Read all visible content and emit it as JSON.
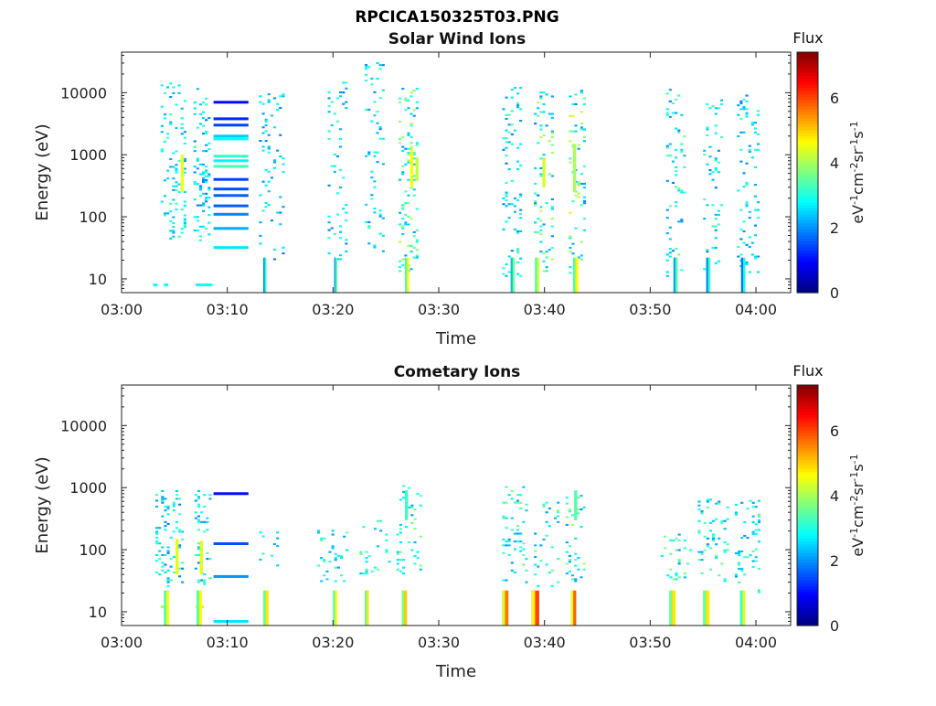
{
  "figure_title": "RPCICA150325T03.PNG",
  "colormap": [
    "#00007f",
    "#0000ff",
    "#007fff",
    "#00ffff",
    "#7fff7f",
    "#ffff00",
    "#ff7f00",
    "#ff0000",
    "#7f0000"
  ],
  "chart_data": [
    {
      "type": "heatmap",
      "title": "Solar Wind Ions",
      "xlabel": "Time",
      "ylabel": "Energy (eV)",
      "y_scale": "log",
      "xlim": [
        0,
        67
      ],
      "ylim": [
        6,
        45000
      ],
      "x_ticks": [
        "03:00",
        "03:10",
        "03:20",
        "03:30",
        "03:40",
        "03:50",
        "04:00"
      ],
      "x_tick_values": [
        0,
        10,
        20,
        30,
        40,
        50,
        60
      ],
      "y_ticks": [
        "10",
        "100",
        "1000",
        "10000"
      ],
      "y_tick_values": [
        10,
        100,
        1000,
        10000
      ],
      "colorbar": {
        "title": "Flux",
        "label": "eV^-1 cm^-2 sr^-1 s^-1",
        "range": [
          0,
          7.4
        ],
        "ticks": [
          0,
          2,
          4,
          6
        ]
      },
      "clusters": [
        {
          "t": [
            3.7,
            6.0
          ],
          "emin": 40,
          "emax": 15000,
          "flux": [
            2.0,
            3.3
          ],
          "density": 0.12
        },
        {
          "t": [
            6.8,
            8.4
          ],
          "emin": 35,
          "emax": 13000,
          "flux": [
            1.8,
            3.2
          ],
          "density": 0.16
        },
        {
          "t": [
            13.0,
            15.5
          ],
          "emin": 20,
          "emax": 10000,
          "flux": [
            1.8,
            3.0
          ],
          "density": 0.08
        },
        {
          "t": [
            19.5,
            21.5
          ],
          "emin": 20,
          "emax": 15000,
          "flux": [
            1.8,
            3.4
          ],
          "density": 0.09
        },
        {
          "t": [
            23.0,
            24.8
          ],
          "emin": 25,
          "emax": 32000,
          "flux": [
            1.8,
            3.3
          ],
          "density": 0.09
        },
        {
          "t": [
            26.2,
            28.2
          ],
          "emin": 12,
          "emax": 13000,
          "flux": [
            2.0,
            4.2
          ],
          "density": 0.13
        },
        {
          "t": [
            36.0,
            38.0
          ],
          "emin": 10,
          "emax": 12000,
          "flux": [
            1.8,
            3.4
          ],
          "density": 0.09
        },
        {
          "t": [
            39.0,
            40.8
          ],
          "emin": 12,
          "emax": 11000,
          "flux": [
            1.8,
            4.2
          ],
          "density": 0.1
        },
        {
          "t": [
            42.3,
            44.0
          ],
          "emin": 12,
          "emax": 11000,
          "flux": [
            1.8,
            4.4
          ],
          "density": 0.11
        },
        {
          "t": [
            51.5,
            53.5
          ],
          "emin": 10,
          "emax": 12000,
          "flux": [
            1.8,
            3.6
          ],
          "density": 0.09
        },
        {
          "t": [
            55.0,
            57.0
          ],
          "emin": 12,
          "emax": 10000,
          "flux": [
            1.8,
            3.4
          ],
          "density": 0.08
        },
        {
          "t": [
            58.2,
            60.3
          ],
          "emin": 10,
          "emax": 10000,
          "flux": [
            1.8,
            3.2
          ],
          "density": 0.09
        }
      ],
      "bands": [
        {
          "t": [
            8.7,
            12.0
          ],
          "energy": 7000,
          "flux": 1.0
        },
        {
          "t": [
            8.7,
            12.0
          ],
          "energy": 3800,
          "flux": 1.2
        },
        {
          "t": [
            8.7,
            12.0
          ],
          "energy": 3000,
          "flux": 1.4
        },
        {
          "t": [
            8.7,
            12.0
          ],
          "energy": 2000,
          "flux": 2.4
        },
        {
          "t": [
            8.7,
            12.0
          ],
          "energy": 1800,
          "flux": 2.8
        },
        {
          "t": [
            8.7,
            12.0
          ],
          "energy": 950,
          "flux": 3.2
        },
        {
          "t": [
            8.7,
            12.0
          ],
          "energy": 800,
          "flux": 2.7
        },
        {
          "t": [
            8.7,
            12.0
          ],
          "energy": 650,
          "flux": 3.3
        },
        {
          "t": [
            8.7,
            12.0
          ],
          "energy": 400,
          "flux": 1.4
        },
        {
          "t": [
            8.7,
            12.0
          ],
          "energy": 280,
          "flux": 1.5
        },
        {
          "t": [
            8.7,
            12.0
          ],
          "energy": 220,
          "flux": 1.6
        },
        {
          "t": [
            8.7,
            12.0
          ],
          "energy": 150,
          "flux": 1.6
        },
        {
          "t": [
            8.7,
            12.0
          ],
          "energy": 110,
          "flux": 1.9
        },
        {
          "t": [
            8.7,
            12.0
          ],
          "energy": 65,
          "flux": 2.2
        },
        {
          "t": [
            8.7,
            12.0
          ],
          "energy": 32,
          "flux": 2.6
        },
        {
          "t": [
            3.0,
            3.4
          ],
          "energy": 8,
          "flux": 2.8
        },
        {
          "t": [
            4.0,
            4.4
          ],
          "energy": 8,
          "flux": 2.8
        },
        {
          "t": [
            7.0,
            8.6
          ],
          "energy": 8,
          "flux": 2.9
        }
      ],
      "hot_streaks": [
        {
          "t": 5.6,
          "emin": 250,
          "emax": 1000,
          "flux": 4.5
        },
        {
          "t": 27.3,
          "emin": 300,
          "emax": 1200,
          "flux": 4.6
        },
        {
          "t": 27.8,
          "emin": 400,
          "emax": 900,
          "flux": 4.2
        },
        {
          "t": 39.8,
          "emin": 300,
          "emax": 900,
          "flux": 4.3
        },
        {
          "t": 42.7,
          "emin": 250,
          "emax": 1500,
          "flux": 4.0
        }
      ],
      "low_energy": [
        {
          "t": [
            13.4,
            13.7
          ],
          "flux": 3.2
        },
        {
          "t": [
            20.1,
            20.4
          ],
          "flux": 3.4
        },
        {
          "t": [
            26.8,
            27.2
          ],
          "flux": 4.6
        },
        {
          "t": [
            36.8,
            37.2
          ],
          "flux": 3.6
        },
        {
          "t": [
            39.1,
            39.5
          ],
          "flux": 4.4
        },
        {
          "t": [
            42.7,
            43.2
          ],
          "flux": 4.6
        },
        {
          "t": [
            52.2,
            52.6
          ],
          "flux": 3.4
        },
        {
          "t": [
            55.3,
            55.7
          ],
          "flux": 3.2
        },
        {
          "t": [
            58.6,
            59.0
          ],
          "flux": 3.0
        }
      ]
    },
    {
      "type": "heatmap",
      "title": "Cometary Ions",
      "xlabel": "Time",
      "ylabel": "Energy (eV)",
      "y_scale": "log",
      "xlim": [
        0,
        67
      ],
      "ylim": [
        6,
        45000
      ],
      "x_ticks": [
        "03:00",
        "03:10",
        "03:20",
        "03:30",
        "03:40",
        "03:50",
        "04:00"
      ],
      "x_tick_values": [
        0,
        10,
        20,
        30,
        40,
        50,
        60
      ],
      "y_ticks": [
        "10",
        "100",
        "1000",
        "10000"
      ],
      "y_tick_values": [
        10,
        100,
        1000,
        10000
      ],
      "colorbar": {
        "title": "Flux",
        "label": "eV^-1 cm^-2 sr^-1 s^-1",
        "range": [
          0,
          7.4
        ],
        "ticks": [
          0,
          2,
          4,
          6
        ]
      },
      "clusters": [
        {
          "t": [
            3.2,
            5.8
          ],
          "emin": 25,
          "emax": 900,
          "flux": [
            1.8,
            3.4
          ],
          "density": 0.14
        },
        {
          "t": [
            6.9,
            8.4
          ],
          "emin": 25,
          "emax": 900,
          "flux": [
            1.8,
            3.4
          ],
          "density": 0.16
        },
        {
          "t": [
            13.0,
            15.0
          ],
          "emin": 50,
          "emax": 200,
          "flux": [
            2.0,
            3.2
          ],
          "density": 0.08
        },
        {
          "t": [
            18.5,
            21.5
          ],
          "emin": 30,
          "emax": 220,
          "flux": [
            2.0,
            3.6
          ],
          "density": 0.1
        },
        {
          "t": [
            22.5,
            25.5
          ],
          "emin": 40,
          "emax": 300,
          "flux": [
            2.0,
            3.6
          ],
          "density": 0.09
        },
        {
          "t": [
            26.0,
            28.5
          ],
          "emin": 40,
          "emax": 1100,
          "flux": [
            2.0,
            3.8
          ],
          "density": 0.11
        },
        {
          "t": [
            36.0,
            38.5
          ],
          "emin": 25,
          "emax": 1100,
          "flux": [
            2.0,
            3.8
          ],
          "density": 0.1
        },
        {
          "t": [
            39.0,
            41.5
          ],
          "emin": 25,
          "emax": 600,
          "flux": [
            2.0,
            3.8
          ],
          "density": 0.09
        },
        {
          "t": [
            42.0,
            44.0
          ],
          "emin": 30,
          "emax": 800,
          "flux": [
            2.0,
            4.0
          ],
          "density": 0.1
        },
        {
          "t": [
            51.0,
            54.0
          ],
          "emin": 30,
          "emax": 200,
          "flux": [
            2.0,
            3.8
          ],
          "density": 0.11
        },
        {
          "t": [
            54.5,
            57.5
          ],
          "emin": 30,
          "emax": 700,
          "flux": [
            2.0,
            3.6
          ],
          "density": 0.09
        },
        {
          "t": [
            58.0,
            60.3
          ],
          "emin": 20,
          "emax": 700,
          "flux": [
            2.0,
            3.4
          ],
          "density": 0.1
        }
      ],
      "bands": [
        {
          "t": [
            8.7,
            12.0
          ],
          "energy": 800,
          "flux": 1.0
        },
        {
          "t": [
            8.7,
            12.0
          ],
          "energy": 125,
          "flux": 1.5
        },
        {
          "t": [
            8.7,
            12.0
          ],
          "energy": 37,
          "flux": 2.0
        },
        {
          "t": [
            8.7,
            12.0
          ],
          "energy": 7,
          "flux": 2.6
        },
        {
          "t": [
            3.7,
            4.4
          ],
          "energy": 12,
          "flux": 4.0
        },
        {
          "t": [
            7.0,
            7.8
          ],
          "energy": 12,
          "flux": 4.2
        }
      ],
      "hot_streaks": [
        {
          "t": 5.1,
          "emin": 40,
          "emax": 150,
          "flux": 4.4
        },
        {
          "t": 7.4,
          "emin": 40,
          "emax": 140,
          "flux": 4.4
        },
        {
          "t": 26.8,
          "emin": 300,
          "emax": 900,
          "flux": 3.2
        },
        {
          "t": 42.8,
          "emin": 300,
          "emax": 900,
          "flux": 3.4
        }
      ],
      "low_energy": [
        {
          "t": [
            4.0,
            4.5
          ],
          "flux": 4.6
        },
        {
          "t": [
            7.1,
            7.6
          ],
          "flux": 4.6
        },
        {
          "t": [
            13.4,
            13.9
          ],
          "flux": 4.8
        },
        {
          "t": [
            20.0,
            20.4
          ],
          "flux": 4.6
        },
        {
          "t": [
            23.0,
            23.4
          ],
          "flux": 4.8
        },
        {
          "t": [
            26.5,
            27.0
          ],
          "flux": 5.0
        },
        {
          "t": [
            36.0,
            36.6
          ],
          "flux": 5.6
        },
        {
          "t": [
            38.8,
            39.5
          ],
          "flux": 6.0
        },
        {
          "t": [
            42.5,
            43.0
          ],
          "flux": 5.8
        },
        {
          "t": [
            51.8,
            52.4
          ],
          "flux": 4.8
        },
        {
          "t": [
            55.0,
            55.6
          ],
          "flux": 4.8
        },
        {
          "t": [
            58.5,
            59.0
          ],
          "flux": 4.4
        }
      ]
    }
  ]
}
